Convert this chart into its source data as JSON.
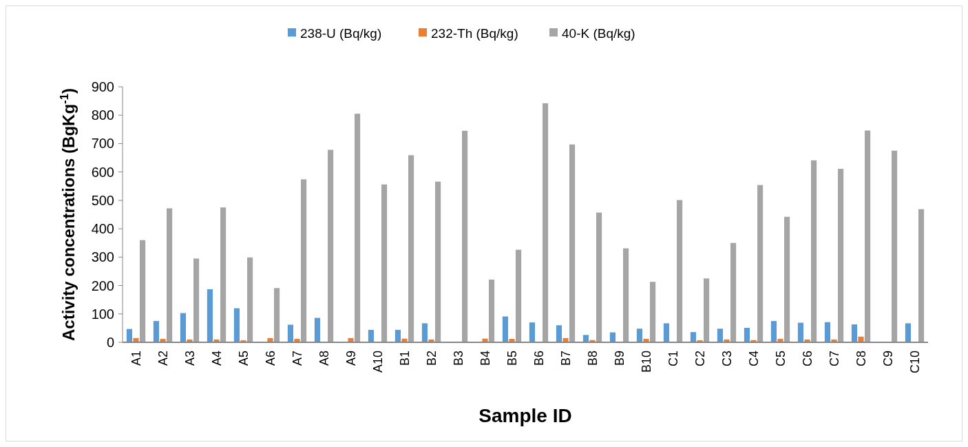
{
  "chart_data": {
    "type": "bar",
    "xlabel": "Sample ID",
    "ylabel": "Activity concentrations  (BgKg$^{-1}$)",
    "categories": [
      "A1",
      "A2",
      "A3",
      "A4",
      "A5",
      "A6",
      "A7",
      "A8",
      "A9",
      "A10",
      "B1",
      "B2",
      "B3",
      "B4",
      "B5",
      "B6",
      "B7",
      "B8",
      "B9",
      "B10",
      "C1",
      "C2",
      "C3",
      "C4",
      "C5",
      "C6",
      "C7",
      "C8",
      "C9",
      "C10"
    ],
    "series": [
      {
        "name": "238-U (Bq/kg)",
        "color": "#5b9bd5",
        "values": [
          47,
          75,
          103,
          187,
          120,
          2,
          62,
          86,
          2,
          44,
          44,
          67,
          1,
          2,
          91,
          70,
          60,
          26,
          35,
          48,
          67,
          36,
          48,
          51,
          75,
          69,
          71,
          63,
          1,
          67
        ]
      },
      {
        "name": "232-Th (Bq/kg)",
        "color": "#ed7d31",
        "values": [
          15,
          12,
          10,
          10,
          7,
          15,
          12,
          2,
          15,
          2,
          13,
          10,
          2,
          13,
          12,
          2,
          15,
          8,
          2,
          12,
          2,
          7,
          10,
          8,
          12,
          10,
          10,
          20,
          2,
          2
        ]
      },
      {
        "name": "40-K (Bq/kg)",
        "color": "#a5a5a5",
        "values": [
          360,
          472,
          295,
          475,
          299,
          191,
          574,
          678,
          805,
          556,
          659,
          566,
          745,
          221,
          326,
          842,
          697,
          457,
          331,
          213,
          501,
          225,
          350,
          554,
          442,
          641,
          611,
          746,
          675,
          469
        ]
      }
    ],
    "ylim": [
      0,
      900
    ],
    "yticks": [
      0,
      100,
      200,
      300,
      400,
      500,
      600,
      700,
      800,
      900
    ],
    "grid": false,
    "legend": "top"
  }
}
